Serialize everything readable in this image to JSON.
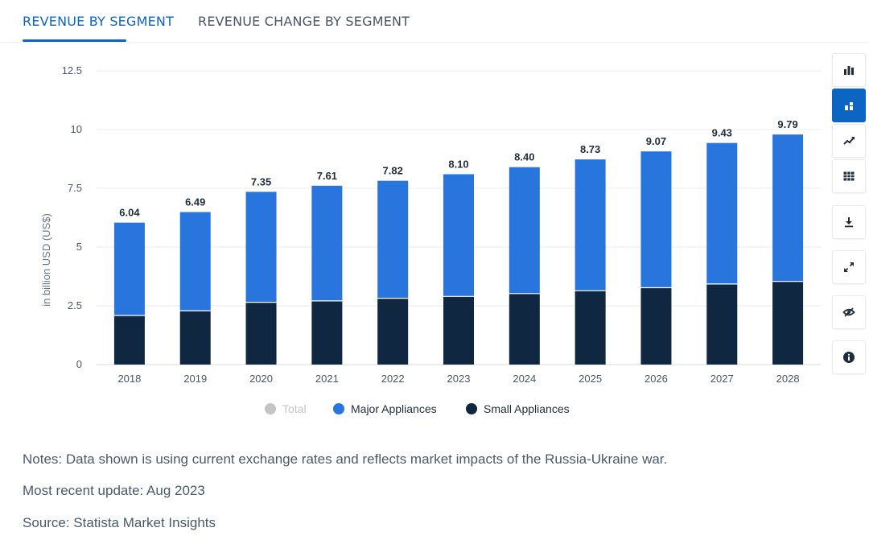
{
  "tabs": [
    {
      "label": "REVENUE BY SEGMENT",
      "active": true
    },
    {
      "label": "REVENUE CHANGE BY SEGMENT",
      "active": false
    }
  ],
  "toolbar": {
    "icons": [
      "bar-chart-icon",
      "stacked-bar-icon",
      "line-chart-icon",
      "table-icon",
      "download-icon",
      "expand-icon",
      "hide-icon",
      "info-icon"
    ],
    "active_color": "#0b66c3"
  },
  "chart_data": {
    "type": "bar",
    "stacked": true,
    "categories": [
      "2018",
      "2019",
      "2020",
      "2021",
      "2022",
      "2023",
      "2024",
      "2025",
      "2026",
      "2027",
      "2028"
    ],
    "series": [
      {
        "name": "Total",
        "visible": false,
        "color": "#c4c4c4",
        "values": [
          6.04,
          6.49,
          7.35,
          7.61,
          7.82,
          8.1,
          8.4,
          8.73,
          9.07,
          9.43,
          9.79
        ]
      },
      {
        "name": "Major Appliances",
        "visible": true,
        "color": "#2876dd",
        "values": [
          3.95,
          4.2,
          4.7,
          4.9,
          5.0,
          5.2,
          5.38,
          5.59,
          5.8,
          6.0,
          6.25
        ]
      },
      {
        "name": "Small Appliances",
        "visible": true,
        "color": "#0f2740",
        "values": [
          2.09,
          2.29,
          2.65,
          2.71,
          2.82,
          2.9,
          3.02,
          3.14,
          3.27,
          3.43,
          3.54
        ]
      }
    ],
    "total_labels": [
      "6.04",
      "6.49",
      "7.35",
      "7.61",
      "7.82",
      "8.10",
      "8.40",
      "8.73",
      "9.07",
      "9.43",
      "9.79"
    ],
    "ylabel": "in billion USD (US$)",
    "ylim": [
      0,
      12.5
    ],
    "yticks": [
      "0",
      "2.5",
      "5",
      "7.5",
      "10",
      "12.5"
    ],
    "ytick_values": [
      0,
      2.5,
      5,
      7.5,
      10,
      12.5
    ],
    "grid": true,
    "legend_position": "bottom"
  },
  "notes": {
    "line1": "Notes: Data shown is using current exchange rates and reflects market impacts of the Russia-Ukraine war.",
    "line2": "Most recent update: Aug 2023",
    "line3": "Source: Statista Market Insights"
  }
}
